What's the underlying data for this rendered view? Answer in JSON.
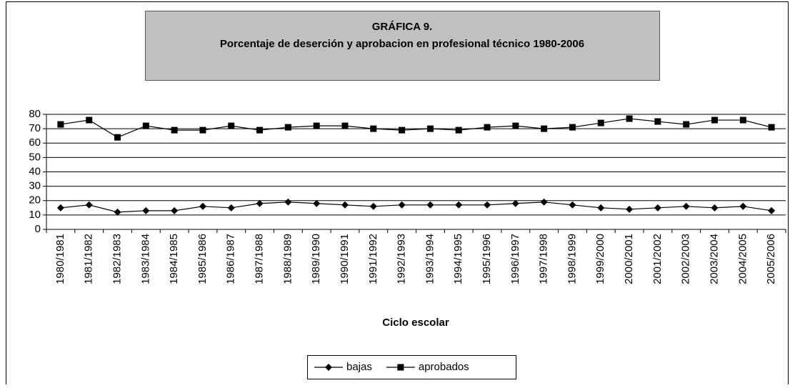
{
  "chart_data": {
    "type": "line",
    "title": "GRÁFICA 9.",
    "subtitle": "Porcentaje de deserción y aprobacion en profesional técnico 1980-2006",
    "x_label": "Ciclo escolar",
    "categories": [
      "1980/1981",
      "1981/1982",
      "1982/1983",
      "1983/1984",
      "1984/1985",
      "1985/1986",
      "1986/1987",
      "1987/1988",
      "1988/1989",
      "1989/1990",
      "1990/1991",
      "1991/1992",
      "1992/1993",
      "1993/1994",
      "1994/1995",
      "1995/1996",
      "1996/1997",
      "1997/1998",
      "1998/1999",
      "1999/2000",
      "2000/2001",
      "2001/2002",
      "2002/2003",
      "2003/2004",
      "2004/2005",
      "2005/2006"
    ],
    "series": [
      {
        "name": "bajas",
        "color": "#000000",
        "marker": "diamond",
        "values": [
          15,
          17,
          12,
          13,
          13,
          16,
          15,
          18,
          19,
          18,
          17,
          16,
          17,
          17,
          17,
          17,
          18,
          19,
          17,
          15,
          14,
          15,
          16,
          15,
          16,
          13
        ]
      },
      {
        "name": "aprobados",
        "color": "#000000",
        "marker": "square",
        "values": [
          73,
          76,
          64,
          72,
          69,
          69,
          72,
          69,
          71,
          72,
          72,
          70,
          69,
          70,
          69,
          71,
          72,
          70,
          71,
          74,
          77,
          75,
          73,
          76,
          76,
          71
        ]
      }
    ],
    "ylim": [
      0,
      80
    ],
    "yticks": [
      0,
      10,
      20,
      30,
      40,
      50,
      60,
      70,
      80
    ],
    "grid": true,
    "legend": "bottom"
  }
}
